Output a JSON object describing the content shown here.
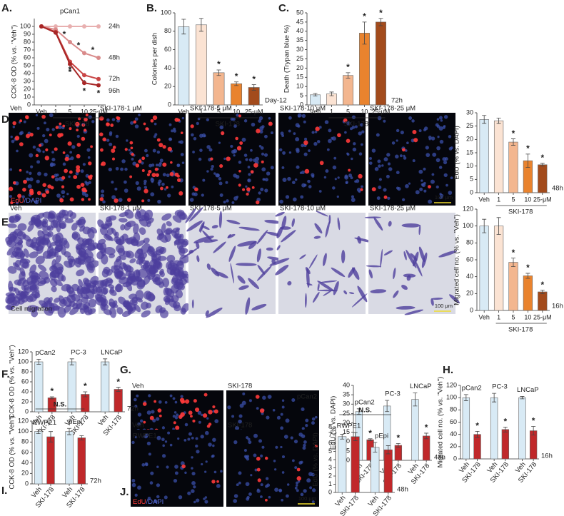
{
  "chart_data": [
    {
      "type": "line",
      "panel": "A.",
      "title": "pCan1",
      "ylabel": "CCK-8 OD (% vs. \"Veh\")",
      "categories": [
        "Veh",
        "1",
        "5",
        "10",
        "25-μM"
      ],
      "xlabel": "SKI-178",
      "ylim": [
        0,
        110
      ],
      "yticks": [
        0,
        10,
        20,
        30,
        40,
        50,
        60,
        70,
        80,
        90,
        100
      ],
      "series": [
        {
          "name": "24h",
          "color": "#e8b0b0",
          "values": [
            100,
            100,
            100,
            100,
            100
          ],
          "stars": [
            null,
            null,
            null,
            null,
            null
          ]
        },
        {
          "name": "48h",
          "color": "#d98a8a",
          "values": [
            100,
            96,
            80,
            66,
            60
          ],
          "stars": [
            null,
            null,
            "*",
            "*",
            "*"
          ]
        },
        {
          "name": "72h",
          "color": "#c94545",
          "values": [
            100,
            93,
            55,
            38,
            33
          ],
          "stars": [
            null,
            null,
            "*",
            "*",
            "*"
          ]
        },
        {
          "name": "96h",
          "color": "#a82626",
          "values": [
            100,
            92,
            52,
            28,
            25
          ],
          "stars": [
            null,
            null,
            "*",
            "*",
            "*"
          ]
        }
      ]
    },
    {
      "type": "bar",
      "panel": "B.",
      "ylabel": "Colonies per dish",
      "categories": [
        "Veh",
        "1",
        "5",
        "10",
        "25-μM"
      ],
      "xlabel": "SKI-178",
      "annotation": "Day-12",
      "ylim": [
        0,
        100
      ],
      "yticks": [
        0,
        20,
        40,
        60,
        80,
        100
      ],
      "values": [
        85,
        87,
        35,
        23,
        19
      ],
      "errors": [
        8,
        7,
        3,
        2,
        3
      ],
      "stars": [
        null,
        null,
        "*",
        "*",
        "*"
      ],
      "colors": [
        "#d8eaf5",
        "#fbe3d3",
        "#f3b68f",
        "#e9832e",
        "#a34b1c"
      ]
    },
    {
      "type": "bar",
      "panel": "C.",
      "ylabel": "Death (Trypan blue %)",
      "categories": [
        "Veh",
        "1",
        "5",
        "10",
        "25-μM"
      ],
      "xlabel": "SKI-178",
      "annotation": "72h",
      "ylim": [
        0,
        50
      ],
      "yticks": [
        0,
        5,
        10,
        15,
        20,
        25,
        30,
        35,
        40,
        45,
        50
      ],
      "values": [
        5.5,
        6,
        16,
        39,
        45
      ],
      "errors": [
        0.7,
        1,
        1.5,
        6,
        2
      ],
      "stars": [
        null,
        null,
        "*",
        "*",
        "*"
      ],
      "colors": [
        "#d8eaf5",
        "#fbe3d3",
        "#f3b68f",
        "#e9832e",
        "#a34b1c"
      ]
    },
    {
      "type": "bar",
      "ylabel": "EdU (% vs. DAPI)",
      "categories": [
        "Veh",
        "1",
        "5",
        "10",
        "25-μM"
      ],
      "xlabel": "SKI-178",
      "annotation": "48h",
      "ylim": [
        0,
        30
      ],
      "yticks": [
        0,
        5,
        10,
        15,
        20,
        25,
        30
      ],
      "values": [
        27.5,
        27,
        19,
        12,
        10.5
      ],
      "errors": [
        1.5,
        1,
        1.2,
        2.5,
        0.5
      ],
      "stars": [
        null,
        null,
        "*",
        "*",
        "*"
      ],
      "colors": [
        "#d8eaf5",
        "#fbe3d3",
        "#f3b68f",
        "#e9832e",
        "#a34b1c"
      ]
    },
    {
      "type": "bar",
      "ylabel": "Migrated cell no. (% vs. \"Veh\")",
      "categories": [
        "Veh",
        "1",
        "5",
        "10",
        "25-μM"
      ],
      "xlabel": "SKI-178",
      "annotation": "16h",
      "ylim": [
        0,
        120
      ],
      "yticks": [
        0,
        20,
        40,
        60,
        80,
        100,
        120
      ],
      "values": [
        100,
        100,
        57,
        41,
        22
      ],
      "errors": [
        8,
        10,
        5,
        3,
        2
      ],
      "stars": [
        null,
        null,
        "*",
        "*",
        "*"
      ],
      "colors": [
        "#d8eaf5",
        "#fbe3d3",
        "#f3b68f",
        "#e9832e",
        "#a34b1c"
      ]
    },
    {
      "type": "bar",
      "panel": "F.",
      "ylabel": "CCK-8 OD (% vs. \"Veh\")",
      "groups": [
        "pCan2",
        "PC-3",
        "LNCaP"
      ],
      "categories": [
        "Veh",
        "SKI-178",
        "Veh",
        "SKI-178",
        "Veh",
        "SKI-178"
      ],
      "annotation": "72h",
      "ylim": [
        0,
        120
      ],
      "yticks": [
        0,
        20,
        40,
        60,
        80,
        100,
        120
      ],
      "values": [
        100,
        28,
        100,
        35,
        100,
        45
      ],
      "errors": [
        5,
        2,
        6,
        5,
        6,
        4
      ],
      "stars": [
        null,
        "*",
        null,
        "*",
        null,
        "*"
      ],
      "colors": [
        "#d8eaf5",
        "#c0282a",
        "#d8eaf5",
        "#c0282a",
        "#d8eaf5",
        "#c0282a"
      ]
    },
    {
      "type": "bar",
      "ylabel": "EdU (% vs. DAPI)",
      "groups": [
        "pCan2",
        "PC-3",
        "LNCaP"
      ],
      "categories": [
        "Veh",
        "SKI-178",
        "Veh",
        "SKI-178",
        "Veh",
        "SKI-178"
      ],
      "annotation": "48h",
      "ylim": [
        0,
        40
      ],
      "yticks": [
        0,
        5,
        10,
        15,
        20,
        25,
        30,
        35,
        40
      ],
      "values": [
        26,
        11,
        29,
        8,
        32.5,
        13
      ],
      "errors": [
        1.5,
        0.5,
        3,
        1,
        3.5,
        1.5
      ],
      "stars": [
        null,
        "*",
        null,
        "*",
        null,
        "*"
      ],
      "colors": [
        "#d8eaf5",
        "#c0282a",
        "#d8eaf5",
        "#c0282a",
        "#d8eaf5",
        "#c0282a"
      ]
    },
    {
      "type": "bar",
      "panel": "H.",
      "ylabel": "Migrated cell no. (% vs. \"Veh\")",
      "groups": [
        "pCan2",
        "PC-3",
        "LNCaP"
      ],
      "categories": [
        "Veh",
        "SKI-178",
        "Veh",
        "SKI-178",
        "Veh",
        "SKI-178"
      ],
      "annotation": "16h",
      "ylim": [
        0,
        120
      ],
      "yticks": [
        0,
        20,
        40,
        60,
        80,
        100,
        120
      ],
      "values": [
        100,
        40,
        100,
        48,
        100,
        46
      ],
      "errors": [
        5,
        5,
        7,
        4,
        2,
        7
      ],
      "stars": [
        null,
        "*",
        null,
        "*",
        null,
        "*"
      ],
      "colors": [
        "#d8eaf5",
        "#c0282a",
        "#d8eaf5",
        "#c0282a",
        "#d8eaf5",
        "#c0282a"
      ]
    },
    {
      "type": "bar",
      "panel": "I.",
      "ylabel": "CCK-8 OD (% vs. \"Veh\")",
      "groups": [
        "RWPE1",
        "pEpi"
      ],
      "categories": [
        "Veh",
        "SKI-178",
        "Veh",
        "SKI-178"
      ],
      "ns": "N.S.",
      "annotation": "72h",
      "ylim": [
        0,
        120
      ],
      "yticks": [
        0,
        20,
        40,
        60,
        80,
        100,
        120
      ],
      "values": [
        100,
        90,
        100,
        88
      ],
      "errors": [
        4,
        10,
        6,
        4
      ],
      "colors": [
        "#d8eaf5",
        "#c0282a",
        "#d8eaf5",
        "#c0282a"
      ]
    },
    {
      "type": "bar",
      "ylabel": "EdU (% vs. DAPI)",
      "groups": [
        "RWPE1",
        "pEpi"
      ],
      "categories": [
        "Veh",
        "SKI-178",
        "Veh",
        "SKI-178"
      ],
      "ns": "N.S.",
      "annotation": "48h",
      "ylim": [
        0,
        8
      ],
      "yticks": [
        0,
        1,
        2,
        3,
        4,
        5,
        6,
        7,
        8
      ],
      "values": [
        6.8,
        6.8,
        5.5,
        5.2
      ],
      "errors": [
        0.3,
        0.5,
        0.6,
        0.5
      ],
      "colors": [
        "#d8eaf5",
        "#c0282a",
        "#d8eaf5",
        "#c0282a"
      ]
    }
  ],
  "images": [
    {
      "panel": "D.",
      "labels": [
        "Veh",
        "SKI-178-1 μM",
        "SKI-178-5 μM",
        "SKI-178-10 μM",
        "SKI-178-25 μM"
      ],
      "stain": [
        "EdU",
        "/DAPI"
      ],
      "scale": "100 μm"
    },
    {
      "panel": "E.",
      "labels": [
        "Veh",
        "SKI-178-1 μM",
        "SKI-178-5 μM",
        "SKI-178-10 μM",
        "SKI-178-25 μM"
      ],
      "caption": "Cell migration",
      "scale": "100 μm"
    },
    {
      "panel": "G.",
      "labels": [
        "Veh",
        "SKI-178"
      ],
      "tag": "pCan2",
      "stain": [
        "EdU",
        "/DAPI"
      ],
      "scale": "100 μm"
    },
    {
      "panel": "J.",
      "labels": [
        "Veh",
        "SKI-178"
      ],
      "tag": "RWPE1",
      "stain": [
        "EdU",
        "/DAPI"
      ],
      "scale": "100 μm"
    }
  ]
}
